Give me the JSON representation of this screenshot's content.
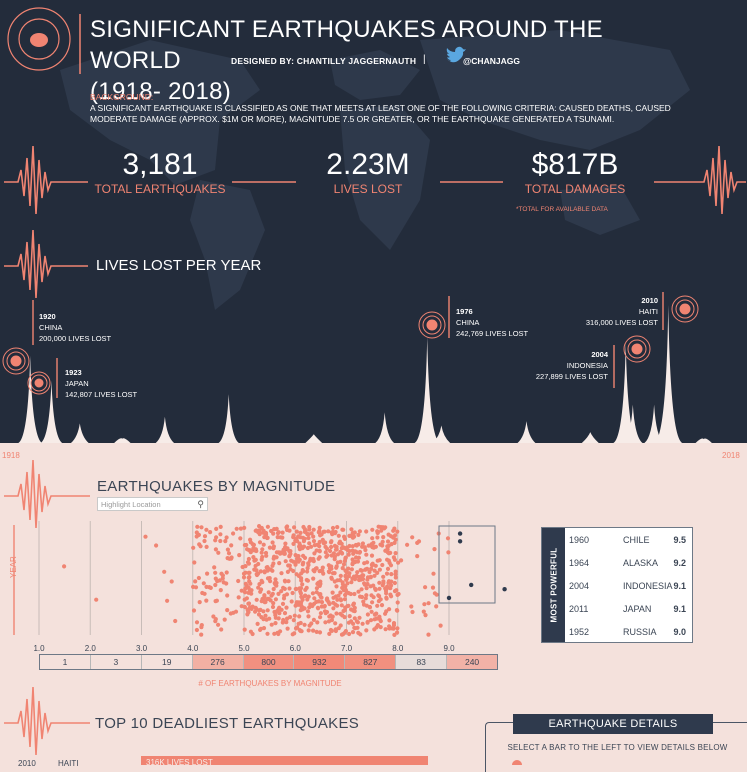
{
  "header": {
    "title_line1": "SIGNIFICANT EARTHQUAKES AROUND THE WORLD",
    "title_line2": "(1918- 2018)",
    "designed_by": "DESIGNED BY: CHANTILLY JAGGERNAUTH",
    "separator": "|",
    "twitter_handle": "@CHANJAGG",
    "background_label": "BACKGROUND:",
    "background_text": "A SIGNIFICANT EARTHQUAKE IS CLASSIFIED AS ONE THAT MEETS AT LEAST ONE OF THE FOLLOWING CRITERIA: CAUSED DEATHS, CAUSED MODERATE DAMAGE (APPROX. $1M OR MORE), MAGNITUDE 7.5 OR GREATER, OR THE EARTHQUAKE GENERATED A TSUNAMI."
  },
  "kpis": [
    {
      "value": "3,181",
      "label": "TOTAL EARTHQUAKES"
    },
    {
      "value": "2.23M",
      "label": "LIVES LOST"
    },
    {
      "value": "$817B",
      "label": "TOTAL DAMAGES"
    }
  ],
  "kpi_footnote": "*TOTAL FOR AVAILABLE DATA",
  "colors": {
    "accent": "#f08472",
    "dark_bg": "#232c3b",
    "light_bg": "#f4e1dc",
    "panel": "#2f3a4d",
    "spike": "#f7ece8"
  },
  "lives_section": {
    "title": "LIVES LOST PER YEAR",
    "start_year": "1918",
    "end_year": "2018",
    "annotations": [
      {
        "year": "1920",
        "place": "CHINA",
        "lives": "200,000 LIVES LOST"
      },
      {
        "year": "1923",
        "place": "JAPAN",
        "lives": "142,807 LIVES LOST"
      },
      {
        "year": "1976",
        "place": "CHINA",
        "lives": "242,769 LIVES LOST"
      },
      {
        "year": "2004",
        "place": "INDONESIA",
        "lives": "227,899 LIVES LOST"
      },
      {
        "year": "2010",
        "place": "HAITI",
        "lives": "316,000 LIVES LOST"
      }
    ]
  },
  "magnitude_section": {
    "title": "EARTHQUAKES BY MAGNITUDE",
    "search_placeholder": "Highlight Location",
    "y_axis_label": "YEAR",
    "count_caption": "# OF EARTHQUAKES BY MAGNITUDE",
    "most_powerful_label": "MOST POWERFUL",
    "most_powerful": [
      {
        "year": "1960",
        "place": "CHILE",
        "mag": "9.5"
      },
      {
        "year": "1964",
        "place": "ALASKA",
        "mag": "9.2"
      },
      {
        "year": "2004",
        "place": "INDONESIA",
        "mag": "9.1"
      },
      {
        "year": "2011",
        "place": "JAPAN",
        "mag": "9.1"
      },
      {
        "year": "1952",
        "place": "RUSSIA",
        "mag": "9.0"
      }
    ]
  },
  "deadliest_section": {
    "title": "TOP 10 DEADLIEST EARTHQUAKES",
    "first_row_year": "2010",
    "first_row_place": "HAITI",
    "first_row_bar_label": "316K LIVES LOST"
  },
  "details_panel": {
    "title": "EARTHQUAKE DETAILS",
    "instruction": "SELECT A BAR TO THE LEFT TO VIEW DETAILS BELOW"
  },
  "chart_data": [
    {
      "type": "area",
      "title": "LIVES LOST PER YEAR",
      "x_range": [
        1918,
        2018
      ],
      "y_range": [
        0,
        316000
      ],
      "series": [
        {
          "name": "",
          "x": [
            1920,
            1923,
            1927,
            1933,
            1939,
            1948,
            1960,
            1970,
            1976,
            1978,
            1990,
            1999,
            2004,
            2005,
            2008,
            2010,
            2015
          ],
          "y": [
            200000,
            142807,
            45000,
            10000,
            60000,
            112000,
            20000,
            70000,
            242769,
            40000,
            50000,
            25000,
            227899,
            88000,
            88000,
            316000,
            9000
          ]
        }
      ]
    },
    {
      "type": "scatter",
      "title": "EARTHQUAKES BY MAGNITUDE",
      "xlabel": "",
      "ylabel": "YEAR",
      "x_ticks": [
        "1.0",
        "2.0",
        "3.0",
        "4.0",
        "5.0",
        "6.0",
        "7.0",
        "8.0",
        "9.0"
      ],
      "xlim": [
        1.0,
        9.5
      ],
      "ylim": [
        1918,
        2018
      ],
      "highlighted_points": [
        {
          "x": 9.0,
          "y": 1952
        },
        {
          "x": 9.1,
          "y": 2004
        },
        {
          "x": 9.1,
          "y": 2011
        },
        {
          "x": 9.2,
          "y": 1964
        },
        {
          "x": 9.5,
          "y": 1960
        }
      ]
    },
    {
      "type": "bar",
      "title": "# OF EARTHQUAKES BY MAGNITUDE",
      "categories": [
        "1.0",
        "2.0",
        "3.0",
        "4.0",
        "5.0",
        "6.0",
        "7.0",
        "8.0",
        "9.0"
      ],
      "values": [
        1,
        3,
        19,
        276,
        800,
        932,
        827,
        83,
        240
      ]
    }
  ]
}
